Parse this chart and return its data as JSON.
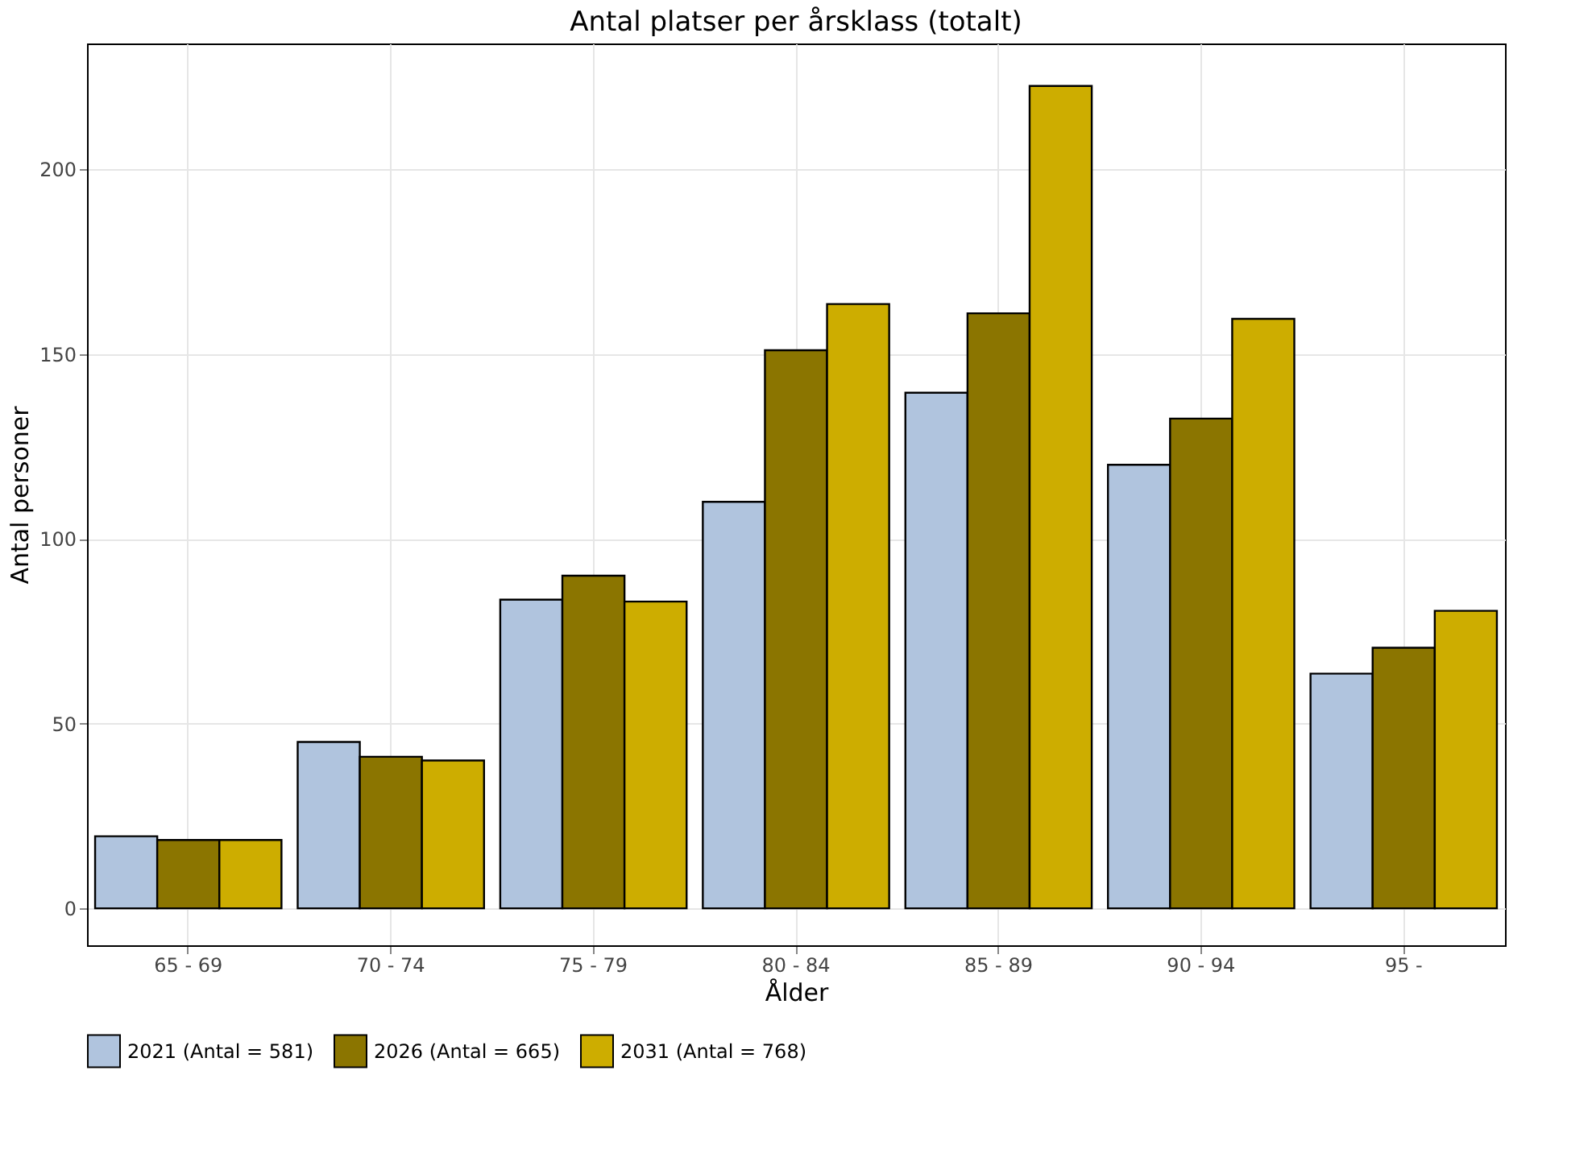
{
  "chart_data": {
    "type": "bar",
    "title": "Antal platser per årsklass (totalt)",
    "xlabel": "Ålder",
    "ylabel": "Antal personer",
    "categories": [
      "65 - 69",
      "70 - 74",
      "75 - 79",
      "80 - 84",
      "85 - 89",
      "90 - 94",
      "95 -"
    ],
    "series": [
      {
        "name": "2021 (Antal = 581)",
        "color": "#b0c4de",
        "values": [
          19.5,
          45,
          83.5,
          110,
          139.5,
          120,
          63.5
        ]
      },
      {
        "name": "2026 (Antal = 665)",
        "color": "#8b7500",
        "values": [
          18.5,
          41,
          90,
          151,
          161,
          132.5,
          70.5
        ]
      },
      {
        "name": "2031 (Antal = 768)",
        "color": "#cdad00",
        "values": [
          18.5,
          40,
          83,
          163.5,
          222.5,
          159.5,
          80.5
        ]
      }
    ],
    "ylim": [
      -10,
      234
    ],
    "yticks": [
      0,
      50,
      100,
      150,
      200
    ],
    "grid": true,
    "legend": "bottom"
  }
}
